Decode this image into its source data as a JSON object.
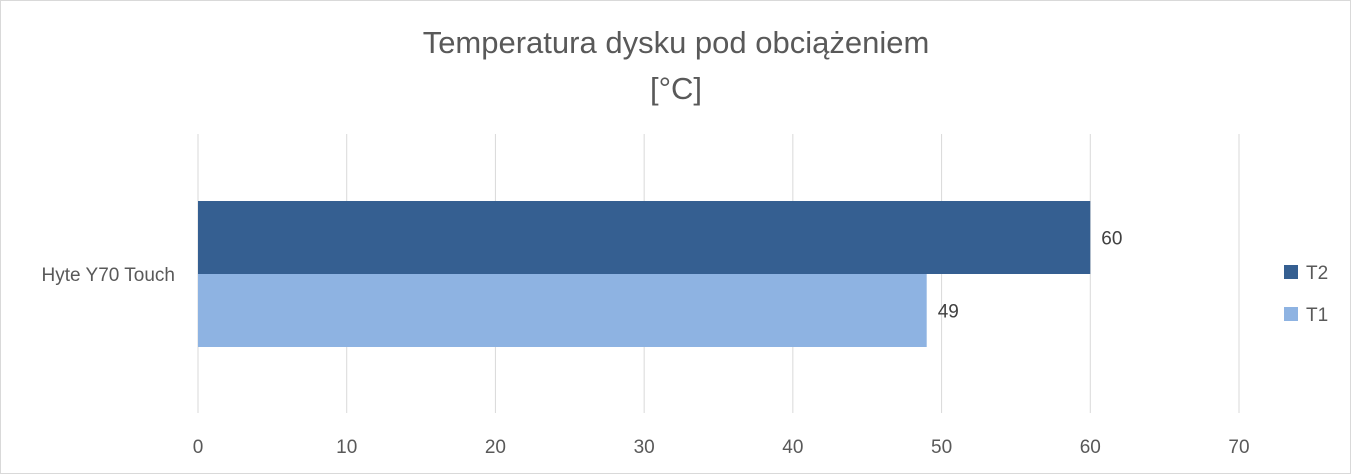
{
  "chart_data": {
    "type": "bar",
    "orientation": "horizontal",
    "title": "Temperatura dysku pod obciążeniem",
    "subtitle": "[°C]",
    "categories": [
      "Hyte Y70 Touch"
    ],
    "series": [
      {
        "name": "T2",
        "values": [
          60
        ],
        "color": "#355f91"
      },
      {
        "name": "T1",
        "values": [
          49
        ],
        "color": "#8eb3e2"
      }
    ],
    "x_ticks": [
      "0",
      "10",
      "20",
      "30",
      "40",
      "50",
      "60",
      "70"
    ],
    "xlim": [
      0,
      70
    ],
    "grid": true,
    "legend_position": "right",
    "data_labels": [
      "60",
      "49"
    ]
  }
}
